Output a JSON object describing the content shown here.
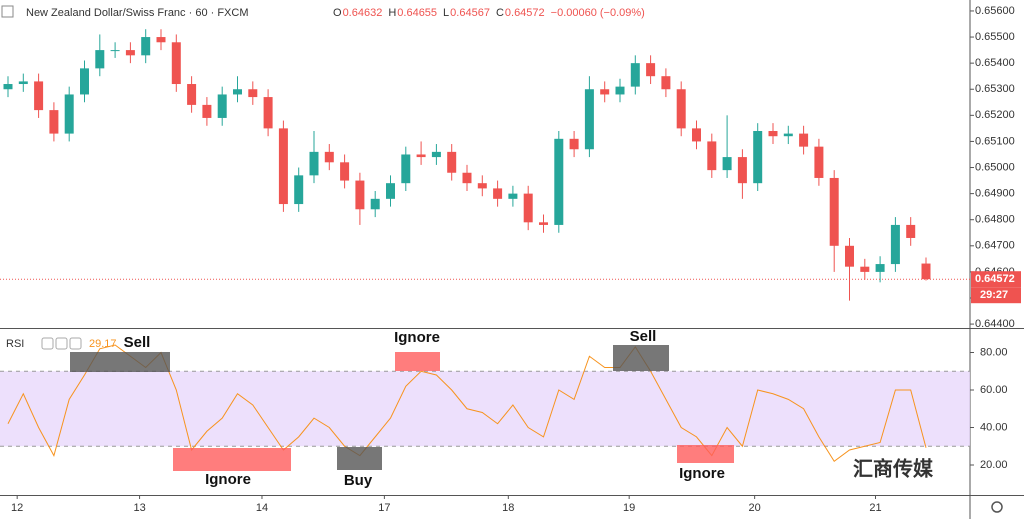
{
  "chart_data": [
    {
      "type": "candlestick",
      "title": "New Zealand Dollar/Swiss Franc · 60 · FXCM",
      "ohlc_labels": [
        "O",
        "H",
        "L",
        "C"
      ],
      "change": "−0.00060 (−0.09%)",
      "countdown": "29:27",
      "up_color": "#26a69a",
      "down_color": "#ef5350",
      "open": [
        0.653,
        0.6532,
        0.6533,
        0.6522,
        0.6513,
        0.6528,
        0.6538,
        0.6545,
        0.6545,
        0.6543,
        0.655,
        0.6548,
        0.6532,
        0.6524,
        0.6519,
        0.6528,
        0.653,
        0.6527,
        0.6515,
        0.6486,
        0.6497,
        0.6506,
        0.6502,
        0.6495,
        0.6484,
        0.6488,
        0.6494,
        0.6505,
        0.6504,
        0.6506,
        0.6498,
        0.6494,
        0.6492,
        0.6488,
        0.649,
        0.6479,
        0.6478,
        0.6511,
        0.6507,
        0.653,
        0.6528,
        0.6531,
        0.654,
        0.6535,
        0.653,
        0.6515,
        0.651,
        0.6499,
        0.6504,
        0.6494,
        0.6514,
        0.6512,
        0.6513,
        0.6508,
        0.6496,
        0.647,
        0.6462,
        0.646,
        0.6463,
        0.6478,
        0.64632
      ],
      "high": [
        0.6535,
        0.6536,
        0.6536,
        0.6525,
        0.6531,
        0.6541,
        0.6551,
        0.6548,
        0.6548,
        0.6553,
        0.6553,
        0.6551,
        0.6535,
        0.6527,
        0.6531,
        0.6535,
        0.6533,
        0.653,
        0.6518,
        0.65,
        0.6514,
        0.6509,
        0.6505,
        0.6498,
        0.6491,
        0.6497,
        0.6508,
        0.651,
        0.6509,
        0.6509,
        0.6501,
        0.6497,
        0.6495,
        0.6493,
        0.6493,
        0.6482,
        0.6514,
        0.6514,
        0.6535,
        0.6533,
        0.6534,
        0.6543,
        0.6543,
        0.6538,
        0.6533,
        0.6518,
        0.6513,
        0.652,
        0.6507,
        0.6517,
        0.6517,
        0.6516,
        0.6516,
        0.6511,
        0.6499,
        0.6473,
        0.6465,
        0.6466,
        0.6481,
        0.6481,
        0.64655
      ],
      "low": [
        0.6527,
        0.6529,
        0.6519,
        0.651,
        0.651,
        0.6525,
        0.6535,
        0.6542,
        0.654,
        0.654,
        0.6545,
        0.6529,
        0.6521,
        0.6516,
        0.6516,
        0.6525,
        0.6524,
        0.6512,
        0.6483,
        0.6483,
        0.6494,
        0.6499,
        0.6492,
        0.6478,
        0.6481,
        0.6485,
        0.6491,
        0.6501,
        0.6501,
        0.6495,
        0.6491,
        0.6489,
        0.6485,
        0.6485,
        0.6476,
        0.6475,
        0.6475,
        0.6504,
        0.6504,
        0.6525,
        0.6525,
        0.6528,
        0.6532,
        0.6527,
        0.6512,
        0.6507,
        0.6496,
        0.6496,
        0.6488,
        0.6491,
        0.6509,
        0.6509,
        0.6505,
        0.6493,
        0.646,
        0.6449,
        0.6457,
        0.6456,
        0.646,
        0.647,
        0.64567
      ],
      "close": [
        0.6532,
        0.6533,
        0.6522,
        0.6513,
        0.6528,
        0.6538,
        0.6545,
        0.6545,
        0.6543,
        0.655,
        0.6548,
        0.6532,
        0.6524,
        0.6519,
        0.6528,
        0.653,
        0.6527,
        0.6515,
        0.6486,
        0.6497,
        0.6506,
        0.6502,
        0.6495,
        0.6484,
        0.6488,
        0.6494,
        0.6505,
        0.6504,
        0.6506,
        0.6498,
        0.6494,
        0.6492,
        0.6488,
        0.649,
        0.6479,
        0.6478,
        0.6511,
        0.6507,
        0.653,
        0.6528,
        0.6531,
        0.654,
        0.6535,
        0.653,
        0.6515,
        0.651,
        0.6499,
        0.6504,
        0.6494,
        0.6514,
        0.6512,
        0.6513,
        0.6508,
        0.6496,
        0.647,
        0.6462,
        0.646,
        0.6463,
        0.6478,
        0.6473,
        0.64572
      ],
      "ylim": [
        0.64385,
        0.65642
      ],
      "yticks": [
        {
          "value": 0.644,
          "label": "0.64400"
        },
        {
          "value": 0.645,
          "label": "0.64500"
        },
        {
          "value": 0.646,
          "label": "0.64600"
        },
        {
          "value": 0.647,
          "label": "0.64700"
        },
        {
          "value": 0.648,
          "label": "0.64800"
        },
        {
          "value": 0.649,
          "label": "0.64900"
        },
        {
          "value": 0.65,
          "label": "0.65000"
        },
        {
          "value": 0.651,
          "label": "0.65100"
        },
        {
          "value": 0.652,
          "label": "0.65200"
        },
        {
          "value": 0.653,
          "label": "0.65300"
        },
        {
          "value": 0.654,
          "label": "0.65400"
        },
        {
          "value": 0.655,
          "label": "0.65500"
        },
        {
          "value": 0.656,
          "label": "0.65600"
        }
      ]
    },
    {
      "type": "line",
      "title": "RSI",
      "series": [
        {
          "color": "#f7931e",
          "values": [
            42,
            58,
            40,
            25,
            55,
            68,
            82,
            84,
            78,
            72,
            80,
            60,
            28,
            38,
            45,
            58,
            52,
            40,
            28,
            35,
            45,
            40,
            30,
            25,
            35,
            45,
            62,
            70,
            68,
            60,
            50,
            48,
            42,
            52,
            40,
            35,
            60,
            55,
            78,
            72,
            72,
            83,
            70,
            55,
            40,
            35,
            25,
            40,
            30,
            60,
            58,
            55,
            50,
            35,
            22,
            28,
            30,
            32,
            60,
            60,
            29.17
          ]
        }
      ],
      "ylim": [
        4,
        92
      ],
      "yticks": [
        {
          "value": 20,
          "label": "20.00"
        },
        {
          "value": 40,
          "label": "40.00"
        },
        {
          "value": 60,
          "label": "60.00"
        },
        {
          "value": 80,
          "label": "80.00"
        }
      ],
      "bands": [
        30,
        70
      ],
      "xticks": [
        {
          "value": 0.6,
          "label": "12"
        },
        {
          "value": 8.6,
          "label": "13"
        },
        {
          "value": 16.6,
          "label": "14"
        },
        {
          "value": 24.6,
          "label": "17"
        },
        {
          "value": 32.7,
          "label": "18"
        },
        {
          "value": 40.6,
          "label": "19"
        },
        {
          "value": 48.8,
          "label": "20"
        },
        {
          "value": 56.7,
          "label": "21"
        }
      ],
      "annotations": [
        "Sell",
        "Ignore",
        "Buy",
        "Ignore",
        "Sell",
        "Ignore"
      ],
      "watermark": "汇商传媒"
    }
  ]
}
